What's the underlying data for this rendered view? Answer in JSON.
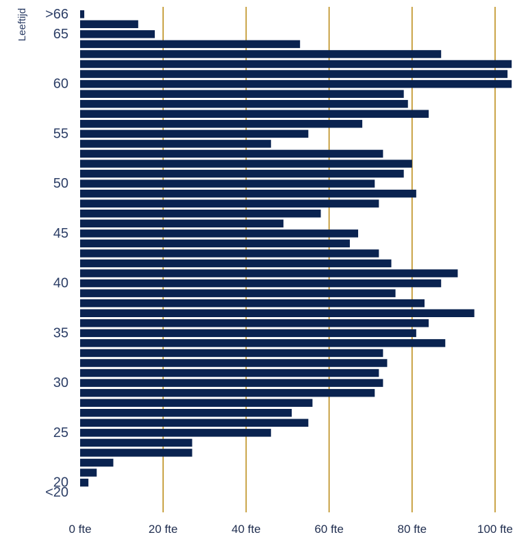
{
  "colors": {
    "bar": "#0a2350",
    "grid": "#b8860b",
    "text": "#2c3e66"
  },
  "chart_data": {
    "type": "bar",
    "orientation": "horizontal",
    "ylabel": "Leeftijd",
    "xlabel": "",
    "xlim": [
      0,
      100
    ],
    "x_ticks": [
      {
        "value": 0,
        "label": "0 fte"
      },
      {
        "value": 20,
        "label": "20 fte"
      },
      {
        "value": 40,
        "label": "40 fte"
      },
      {
        "value": 60,
        "label": "60 fte"
      },
      {
        "value": 80,
        "label": "80 fte"
      },
      {
        "value": 100,
        "label": "100 fte"
      }
    ],
    "y_tick_labels": [
      ">66",
      "65",
      "60",
      "55",
      "50",
      "45",
      "40",
      "35",
      "30",
      "25",
      "20",
      "<20"
    ],
    "grid": "vertical",
    "categories": [
      ">66",
      "66",
      "65",
      "64",
      "63",
      "62",
      "61",
      "60",
      "59",
      "58",
      "57",
      "56",
      "55",
      "54",
      "53",
      "52",
      "51",
      "50",
      "49",
      "48",
      "47",
      "46",
      "45",
      "44",
      "43",
      "42",
      "41",
      "40",
      "39",
      "38",
      "37",
      "36",
      "35",
      "34",
      "33",
      "32",
      "31",
      "30",
      "29",
      "28",
      "27",
      "26",
      "25",
      "24",
      "23",
      "22",
      "21",
      "20",
      "<20"
    ],
    "values": [
      1,
      14,
      18,
      53,
      87,
      104,
      103,
      104,
      78,
      79,
      84,
      68,
      55,
      46,
      73,
      80,
      78,
      71,
      81,
      72,
      58,
      49,
      67,
      65,
      72,
      75,
      91,
      87,
      76,
      83,
      95,
      84,
      81,
      88,
      73,
      74,
      72,
      73,
      71,
      56,
      51,
      55,
      46,
      27,
      27,
      8,
      4,
      2,
      0
    ]
  }
}
